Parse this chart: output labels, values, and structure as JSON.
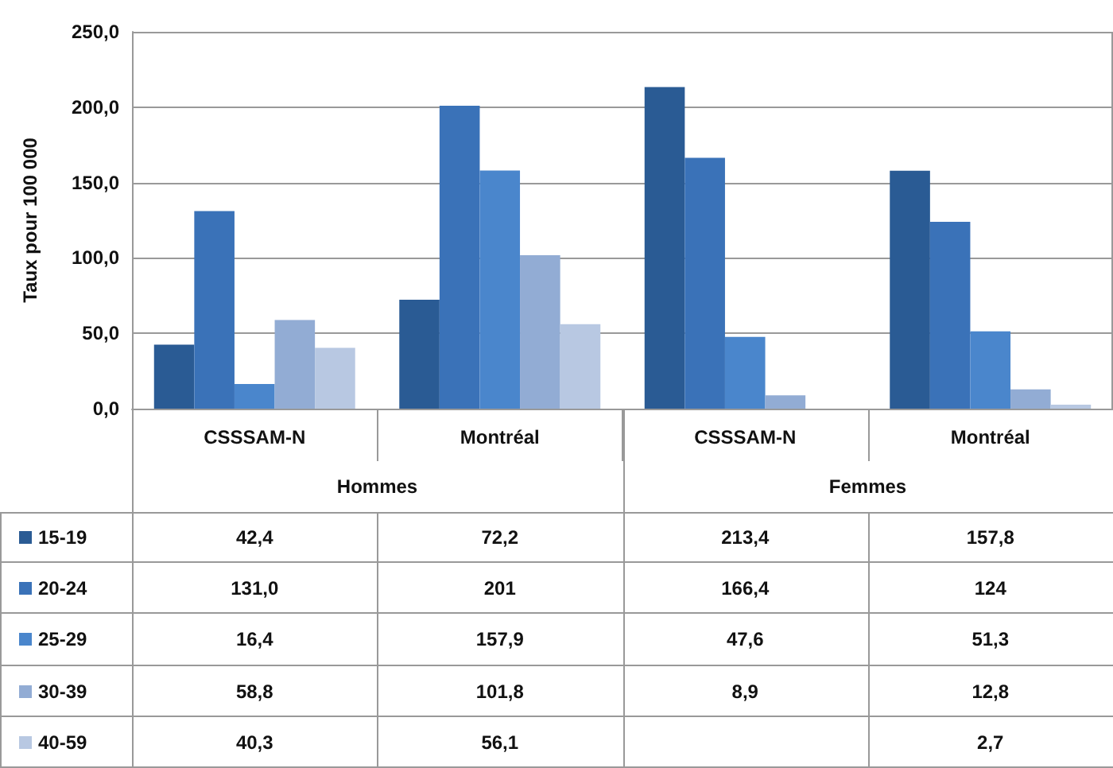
{
  "chart_data": {
    "type": "bar",
    "ylabel": "Taux pour 100 000",
    "categories": [
      "CSSSAM-N",
      "Montréal",
      "CSSSAM-N",
      "Montréal"
    ],
    "annotations": [
      "Hommes",
      "Femmes"
    ],
    "series": [
      {
        "name": "15-19",
        "color": "#2a5b94",
        "values": [
          42.4,
          72.2,
          213.4,
          157.8
        ],
        "value_labels": [
          "42,4",
          "72,2",
          "213,4",
          "157,8"
        ]
      },
      {
        "name": "20-24",
        "color": "#3a72b8",
        "values": [
          131.0,
          201,
          166.4,
          124
        ],
        "value_labels": [
          "131,0",
          "201",
          "166,4",
          "124"
        ]
      },
      {
        "name": "25-29",
        "color": "#4a86cc",
        "values": [
          16.4,
          157.9,
          47.6,
          51.3
        ],
        "value_labels": [
          "16,4",
          "157,9",
          "47,6",
          "51,3"
        ]
      },
      {
        "name": "30-39",
        "color": "#92acd4",
        "values": [
          58.8,
          101.8,
          8.9,
          12.8
        ],
        "value_labels": [
          "58,8",
          "101,8",
          "8,9",
          "12,8"
        ]
      },
      {
        "name": "40-59",
        "color": "#b8c8e2",
        "values": [
          40.3,
          56.1,
          null,
          2.7
        ],
        "value_labels": [
          "40,3",
          "56,1",
          null,
          "2,7"
        ]
      }
    ],
    "ylim": [
      0,
      250
    ],
    "yticks": [
      {
        "value": 0,
        "label": "0,0"
      },
      {
        "value": 50,
        "label": "50,0"
      },
      {
        "value": 100,
        "label": "100,0"
      },
      {
        "value": 150,
        "label": "150,0"
      },
      {
        "value": 200,
        "label": "200,0"
      },
      {
        "value": 250,
        "label": "250,0"
      }
    ],
    "grid": "y",
    "legend": "bottom"
  }
}
